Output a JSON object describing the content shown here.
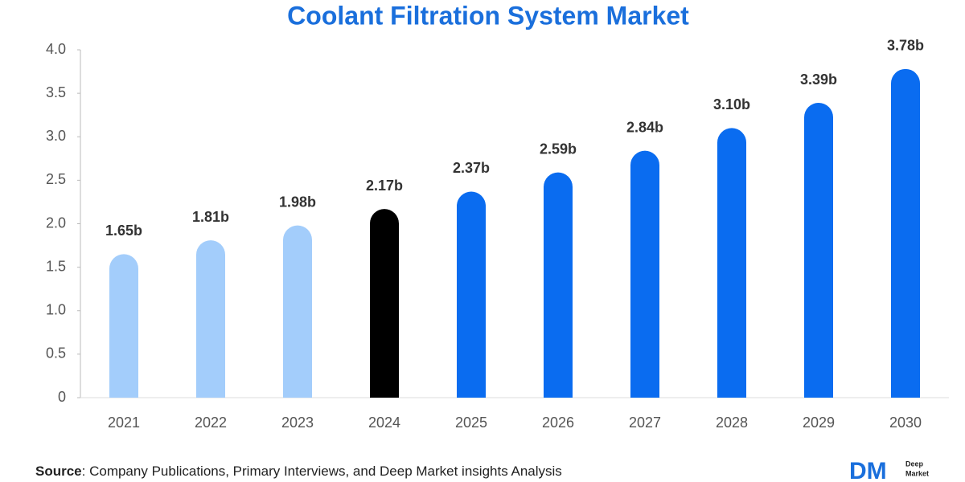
{
  "chart_data": {
    "type": "bar",
    "title": "Coolant Filtration System Market",
    "categories": [
      "2021",
      "2022",
      "2023",
      "2024",
      "2025",
      "2026",
      "2027",
      "2028",
      "2029",
      "2030"
    ],
    "values": [
      1.65,
      1.81,
      1.98,
      2.17,
      2.37,
      2.59,
      2.84,
      3.1,
      3.39,
      3.78
    ],
    "value_labels": [
      "1.65b",
      "1.81b",
      "1.98b",
      "2.17b",
      "2.37b",
      "2.59b",
      "2.84b",
      "3.10b",
      "3.39b",
      "3.78b"
    ],
    "colors": [
      "#a3cdfb",
      "#a3cdfb",
      "#a3cdfb",
      "#000000",
      "#0a6cf0",
      "#0a6cf0",
      "#0a6cf0",
      "#0a6cf0",
      "#0a6cf0",
      "#0a6cf0"
    ],
    "ylim": [
      0,
      4
    ],
    "yticks": [
      0,
      0.5,
      {
        "value": 1,
        "label": "1.0"
      },
      1.5,
      {
        "value": 2,
        "label": "2.0"
      },
      2.5,
      {
        "value": 3,
        "label": "3.0"
      },
      3.5,
      {
        "value": 4,
        "label": "4.0"
      }
    ],
    "grid": false,
    "source_label": "Source",
    "source_text": ": Company Publications, Primary Interviews, and Deep Market insights Analysis",
    "logo": {
      "mark": "DM",
      "line1": "Deep",
      "line2": "Market"
    }
  }
}
